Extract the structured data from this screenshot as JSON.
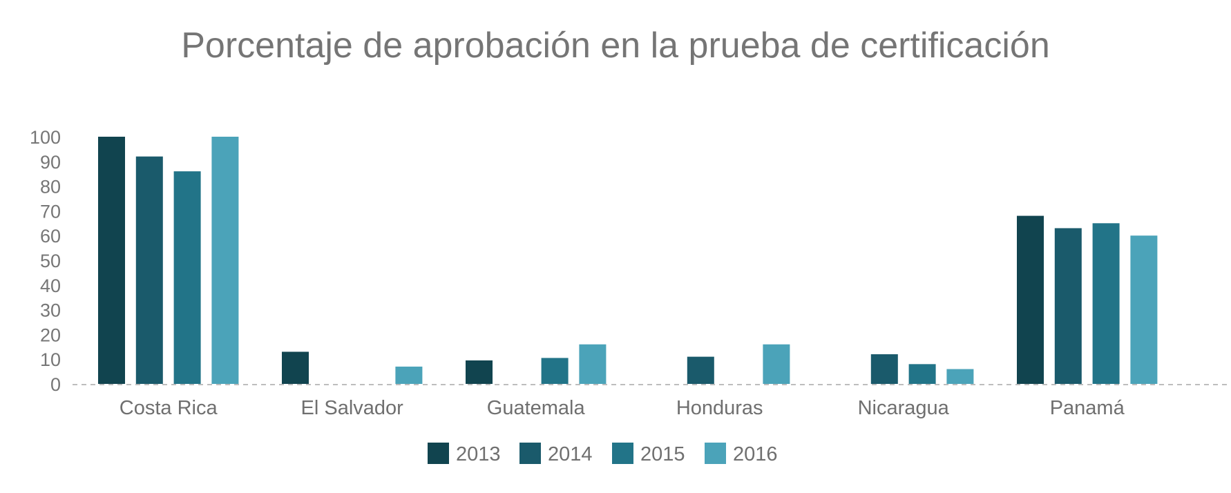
{
  "chart_data": {
    "type": "bar",
    "title": "Porcentaje de aprobación en la prueba de certificación",
    "xlabel": "",
    "ylabel": "",
    "ylim": [
      0,
      100
    ],
    "yticks": [
      0,
      10,
      20,
      30,
      40,
      50,
      60,
      70,
      80,
      90,
      100
    ],
    "grid": false,
    "legend_position": "bottom",
    "categories": [
      "Costa Rica",
      "El Salvador",
      "Guatemala",
      "Honduras",
      "Nicaragua",
      "Panamá"
    ],
    "series": [
      {
        "name": "2013",
        "color": "#11444f",
        "values": [
          100,
          13,
          9.5,
          null,
          null,
          68
        ]
      },
      {
        "name": "2014",
        "color": "#1a5a6b",
        "values": [
          92,
          null,
          null,
          11,
          12,
          63
        ]
      },
      {
        "name": "2015",
        "color": "#227488",
        "values": [
          86,
          null,
          10.5,
          null,
          8,
          65
        ]
      },
      {
        "name": "2016",
        "color": "#4ba3b9",
        "values": [
          100,
          7,
          16,
          16,
          6,
          60
        ]
      }
    ]
  }
}
